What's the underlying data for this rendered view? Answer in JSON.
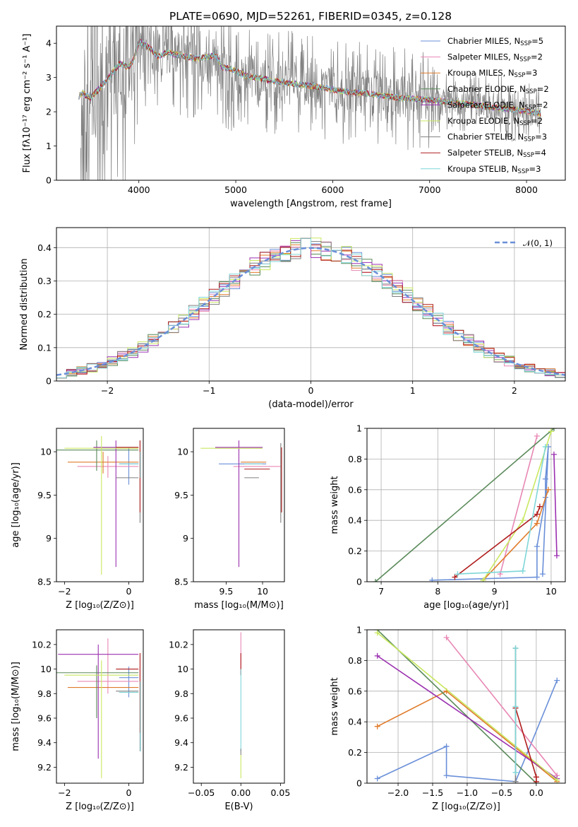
{
  "figure": {
    "title": "PLATE=0690, MJD=52261, FIBERID=0345, z=0.128"
  },
  "colors": {
    "Chabrier MILES": "#6a8fd8",
    "Salpeter MILES": "#e887b4",
    "Kroupa MILES": "#e07b2a",
    "Chabrier ELODIE": "#5a8a5a",
    "Salpeter ELODIE": "#9b30b0",
    "Kroupa ELODIE": "#c9e860",
    "Chabrier STELIB": "#7f7f7f",
    "Salpeter STELIB": "#b01c1c",
    "Kroupa STELIB": "#7fd6d8",
    "gaussian": "#6a8fd8",
    "data_noise": "#808080"
  },
  "chart_data": [
    {
      "id": "spectrum",
      "type": "line",
      "xlabel": "wavelength [Angstrom, rest frame]",
      "ylabel": "Flux [fλ10⁻¹⁷ erg cm⁻² s⁻¹ A⁻¹]",
      "xlim": [
        3150,
        8400
      ],
      "ylim": [
        0,
        4.5
      ],
      "xticks": [
        4000,
        5000,
        6000,
        7000,
        8000
      ],
      "yticks": [
        0,
        1,
        2,
        3,
        4
      ],
      "legend_position": "top-right",
      "legend": [
        {
          "label": "Chabrier MILES, N",
          "sub": "SSP",
          "n": "=5",
          "color_key": "Chabrier MILES"
        },
        {
          "label": "Salpeter MILES, N",
          "sub": "SSP",
          "n": "=2",
          "color_key": "Salpeter MILES"
        },
        {
          "label": "Kroupa MILES, N",
          "sub": "SSP",
          "n": "=3",
          "color_key": "Kroupa MILES"
        },
        {
          "label": "Chabrier ELODIE, N",
          "sub": "SSP",
          "n": "=2",
          "color_key": "Chabrier ELODIE"
        },
        {
          "label": "Salpeter ELODIE, N",
          "sub": "SSP",
          "n": "=2",
          "color_key": "Salpeter ELODIE"
        },
        {
          "label": "Kroupa ELODIE, N",
          "sub": "SSP",
          "n": "=2",
          "color_key": "Kroupa ELODIE"
        },
        {
          "label": "Chabrier STELIB, N",
          "sub": "SSP",
          "n": "=3",
          "color_key": "Chabrier STELIB"
        },
        {
          "label": "Salpeter STELIB, N",
          "sub": "SSP",
          "n": "=4",
          "color_key": "Salpeter STELIB"
        },
        {
          "label": "Kroupa STELIB, N",
          "sub": "SSP",
          "n": "=3",
          "color_key": "Kroupa STELIB"
        }
      ],
      "model_continuum": {
        "x": [
          3380,
          3420,
          3500,
          3600,
          3700,
          3800,
          3900,
          3950,
          4000,
          4100,
          4200,
          4300,
          4400,
          4600,
          4800,
          4860,
          4950,
          5100,
          5300,
          5500,
          5800,
          6100,
          6400,
          6700,
          7000,
          7300,
          7600,
          7900,
          8150
        ],
        "y": [
          2.45,
          2.55,
          2.4,
          2.7,
          3.05,
          3.4,
          3.3,
          3.55,
          4.05,
          3.9,
          3.6,
          3.75,
          3.65,
          3.55,
          3.65,
          3.3,
          3.25,
          3.05,
          2.95,
          2.85,
          2.75,
          2.6,
          2.52,
          2.4,
          2.35,
          2.25,
          2.15,
          2.05,
          1.95
        ]
      },
      "data_noise": {
        "x_range": [
          3400,
          8150
        ],
        "amplitude_note": "noisy observed spectrum spanning roughly 0 to above 4.5"
      }
    },
    {
      "id": "residuals",
      "type": "line",
      "xlabel": "(data-model)/error",
      "ylabel": "Normed distribution",
      "xlim": [
        -2.5,
        2.5
      ],
      "ylim": [
        0,
        0.46
      ],
      "xticks": [
        -2,
        -1,
        0,
        1,
        2
      ],
      "yticks": [
        0.0,
        0.1,
        0.2,
        0.3,
        0.4
      ],
      "grid": true,
      "legend_position": "top-right",
      "legend_label": "𝒩(0, 1)",
      "gaussian": {
        "mean": 0,
        "sigma": 1
      },
      "bins": {
        "start": -2.5,
        "width": 0.1,
        "count": 50
      }
    },
    {
      "id": "age-vs-Z",
      "type": "scatter",
      "xlabel": "Z [log₁₀(Z/Z⊙)]",
      "ylabel": "age  [log₁₀(age/yr)]",
      "xlim": [
        -2.25,
        0.45
      ],
      "ylim": [
        8.5,
        10.27
      ],
      "xticks": [
        -2,
        0
      ],
      "yticks": [
        8.5,
        9.0,
        9.5,
        10.0
      ],
      "points": [
        {
          "key": "Chabrier MILES",
          "x": [
            -0.3,
            0.3
          ],
          "y": 9.86,
          "yerr": [
            9.62,
            10.05
          ]
        },
        {
          "key": "Salpeter MILES",
          "x": [
            -1.6,
            0.3
          ],
          "y": 9.83,
          "yerr": [
            9.7,
            9.95
          ]
        },
        {
          "key": "Kroupa MILES",
          "x": [
            -1.9,
            0.3
          ],
          "y": 9.88,
          "yerr": [
            9.75,
            10.0
          ]
        },
        {
          "key": "Chabrier ELODIE",
          "x": [
            -2.3,
            0.3
          ],
          "y": 10.02,
          "yerr": [
            9.78,
            10.13
          ]
        },
        {
          "key": "Salpeter ELODIE",
          "x": [
            -1.1,
            0.3
          ],
          "y": 10.05,
          "yerr": [
            8.67,
            10.13
          ]
        },
        {
          "key": "Kroupa ELODIE",
          "x": [
            -2.0,
            0.3
          ],
          "y": 10.04,
          "yerr": [
            8.58,
            10.18
          ]
        },
        {
          "key": "Chabrier STELIB",
          "x": [
            -0.4,
            0.3
          ],
          "y": 9.7,
          "yerr": [
            9.18,
            10.13
          ]
        },
        {
          "key": "Salpeter STELIB",
          "x": [
            -0.4,
            0.3
          ],
          "y": 10.05,
          "yerr": [
            9.3,
            10.13
          ]
        },
        {
          "key": "Kroupa STELIB",
          "x": [
            -0.3,
            0.3
          ],
          "y": 9.86,
          "yerr": [
            9.7,
            10.0
          ]
        }
      ]
    },
    {
      "id": "age-vs-mass",
      "type": "scatter",
      "xlabel": "mass [log₁₀(M/M⊙)]",
      "ylabel": "",
      "xlim": [
        9.05,
        10.3
      ],
      "ylim": [
        8.5,
        10.27
      ],
      "xticks": [
        9.5,
        10.0
      ],
      "yticks": [
        8.5,
        9.0,
        9.5,
        10.0
      ],
      "points": [
        {
          "key": "Chabrier MILES",
          "x": [
            9.4,
            10.05
          ],
          "y": 9.86
        },
        {
          "key": "Salpeter MILES",
          "x": [
            9.6,
            10.25
          ],
          "y": 9.83
        },
        {
          "key": "Kroupa MILES",
          "x": [
            9.7,
            10.05
          ],
          "y": 9.88
        },
        {
          "key": "Salpeter ELODIE",
          "x": [
            9.35,
            10.0
          ],
          "y": 10.05,
          "yerr": [
            8.67,
            10.13
          ]
        },
        {
          "key": "Kroupa ELODIE",
          "x": [
            9.15,
            10.0
          ],
          "y": 10.04
        },
        {
          "key": "Chabrier STELIB",
          "x": [
            9.75,
            9.95
          ],
          "y": 9.7,
          "yerr": [
            9.18,
            10.1
          ]
        },
        {
          "key": "Salpeter STELIB",
          "x": [
            9.75,
            10.1
          ],
          "y": 9.8,
          "yerr": [
            9.3,
            10.05
          ]
        },
        {
          "key": "Kroupa STELIB",
          "x": [
            9.75,
            10.0
          ],
          "y": 9.86
        }
      ]
    },
    {
      "id": "massweight-vs-age",
      "type": "line",
      "xlabel": "age  [log₁₀(age/yr)]",
      "ylabel": "mass weight",
      "xlim": [
        6.75,
        10.25
      ],
      "ylim": [
        0,
        1.0
      ],
      "xticks": [
        7,
        8,
        9,
        10
      ],
      "yticks": [
        0.0,
        0.2,
        0.4,
        0.6,
        0.8,
        1.0
      ],
      "grid": true,
      "series": [
        {
          "key": "Chabrier MILES",
          "x": [
            7.9,
            9.75,
            9.75,
            9.9,
            9.9,
            9.95,
            9.85
          ],
          "y": [
            0.01,
            0.03,
            0.23,
            0.55,
            0.67,
            0.88,
            0.05
          ]
        },
        {
          "key": "Salpeter MILES",
          "x": [
            9.1,
            9.75
          ],
          "y": [
            0.05,
            0.95
          ]
        },
        {
          "key": "Kroupa MILES",
          "x": [
            8.8,
            9.75,
            9.95
          ],
          "y": [
            0.01,
            0.38,
            0.6
          ]
        },
        {
          "key": "Chabrier ELODIE",
          "x": [
            6.9,
            10.05
          ],
          "y": [
            0.0,
            1.0
          ]
        },
        {
          "key": "Salpeter ELODIE",
          "x": [
            10.05,
            10.1
          ],
          "y": [
            0.83,
            0.17
          ]
        },
        {
          "key": "Kroupa ELODIE",
          "x": [
            8.8,
            9.5,
            10.0
          ],
          "y": [
            0.01,
            0.4,
            0.98
          ]
        },
        {
          "key": "Salpeter STELIB",
          "x": [
            8.3,
            9.75,
            9.8
          ],
          "y": [
            0.03,
            0.44,
            0.49
          ]
        },
        {
          "key": "Kroupa STELIB",
          "x": [
            8.35,
            9.5,
            9.9
          ],
          "y": [
            0.05,
            0.07,
            0.88
          ]
        }
      ]
    },
    {
      "id": "mass-vs-Z",
      "type": "scatter",
      "xlabel": "Z [log₁₀(Z/Z⊙)]",
      "ylabel": "mass [log₁₀(M/M⊙)]",
      "xlim": [
        -2.25,
        0.45
      ],
      "ylim": [
        9.07,
        10.32
      ],
      "xticks": [
        -2,
        0
      ],
      "yticks": [
        9.2,
        9.4,
        9.6,
        9.8,
        10.0,
        10.2
      ],
      "points": [
        {
          "key": "Chabrier MILES",
          "x": [
            -0.3,
            0.3
          ],
          "y": 9.93,
          "yerr": [
            9.77,
            10.02
          ]
        },
        {
          "key": "Salpeter MILES",
          "x": [
            -1.6,
            0.3
          ],
          "y": 9.9,
          "yerr": [
            9.8,
            10.25
          ]
        },
        {
          "key": "Kroupa MILES",
          "x": [
            -1.9,
            0.3
          ],
          "y": 9.85
        },
        {
          "key": "Chabrier ELODIE",
          "x": [
            -2.3,
            0.3
          ],
          "y": 9.97,
          "yerr": [
            9.6,
            10.03
          ]
        },
        {
          "key": "Salpeter ELODIE",
          "x": [
            -2.2,
            0.3
          ],
          "y": 10.12,
          "yerr": [
            9.27,
            10.2
          ]
        },
        {
          "key": "Kroupa ELODIE",
          "x": [
            -2.0,
            0.3
          ],
          "y": 9.95,
          "yerr": [
            9.11,
            10.07
          ]
        },
        {
          "key": "Chabrier STELIB",
          "x": [
            -0.4,
            0.3
          ],
          "y": 9.82,
          "yerr": [
            9.33,
            10.02
          ]
        },
        {
          "key": "Salpeter STELIB",
          "x": [
            -0.4,
            0.3
          ],
          "y": 10.0,
          "yerr": [
            9.48,
            10.13
          ]
        },
        {
          "key": "Kroupa STELIB",
          "x": [
            -0.3,
            0.3
          ],
          "y": 9.81,
          "yerr": [
            9.33,
            9.9
          ]
        }
      ]
    },
    {
      "id": "mass-vs-EBV",
      "type": "scatter",
      "xlabel": "E(B-V)",
      "ylabel": "",
      "xlim": [
        -0.06,
        0.055
      ],
      "ylim": [
        9.07,
        10.32
      ],
      "xticks": [
        -0.05,
        0.0,
        0.05
      ],
      "xticklabels": [
        "−0.05",
        "0.00",
        "0.05"
      ],
      "yticks": [
        9.2,
        9.4,
        9.6,
        9.8,
        10.0,
        10.2
      ],
      "points": [
        {
          "key": "Salpeter MILES",
          "x": 0.0,
          "yerr": [
            9.95,
            10.3
          ]
        },
        {
          "key": "Kroupa ELODIE",
          "x": 0.0,
          "yerr": [
            9.11,
            9.3
          ]
        },
        {
          "key": "Salpeter STELIB",
          "x": 0.0,
          "yerr": [
            9.95,
            10.13
          ]
        },
        {
          "key": "Kroupa STELIB",
          "x": 0.0,
          "yerr": [
            9.33,
            10.0
          ]
        },
        {
          "key": "Chabrier STELIB",
          "x": 0.0,
          "yerr": [
            9.3,
            9.35
          ]
        }
      ]
    },
    {
      "id": "massweight-vs-Z",
      "type": "line",
      "xlabel": "Z [log₁₀(Z/Z⊙)]",
      "ylabel": "mass weight",
      "xlim": [
        -2.45,
        0.42
      ],
      "ylim": [
        0,
        1.0
      ],
      "xticks": [
        -2.0,
        -1.5,
        -1.0,
        -0.5,
        0.0
      ],
      "xticklabels": [
        "−2.0",
        "−1.5",
        "−1.0",
        "−0.5",
        "0.0"
      ],
      "yticks": [
        0.0,
        0.2,
        0.4,
        0.6,
        0.8,
        1.0
      ],
      "grid": true,
      "series": [
        {
          "key": "Chabrier MILES",
          "x": [
            -2.3,
            -1.3,
            -1.3,
            -0.3,
            0.3
          ],
          "y": [
            0.03,
            0.24,
            0.05,
            0.01,
            0.67
          ]
        },
        {
          "key": "Salpeter MILES",
          "x": [
            -1.3,
            0.3
          ],
          "y": [
            0.95,
            0.05
          ]
        },
        {
          "key": "Kroupa MILES",
          "x": [
            -2.3,
            -1.3,
            0.3
          ],
          "y": [
            0.37,
            0.6,
            0.01
          ]
        },
        {
          "key": "Chabrier ELODIE",
          "x": [
            -2.3,
            0.0
          ],
          "y": [
            1.0,
            0.0
          ]
        },
        {
          "key": "Salpeter ELODIE",
          "x": [
            -2.3,
            0.3
          ],
          "y": [
            0.83,
            0.03
          ]
        },
        {
          "key": "Kroupa ELODIE",
          "x": [
            -2.3,
            0.3
          ],
          "y": [
            0.98,
            0.02
          ]
        },
        {
          "key": "Chabrier STELIB",
          "x": [
            -0.3,
            -0.3
          ],
          "y": [
            0.01,
            0.88
          ]
        },
        {
          "key": "Salpeter STELIB",
          "x": [
            -0.3,
            0.0,
            0.0
          ],
          "y": [
            0.49,
            0.04,
            0.01
          ]
        },
        {
          "key": "Kroupa STELIB",
          "x": [
            -0.3,
            -0.3,
            -0.3
          ],
          "y": [
            0.07,
            0.88,
            0.5
          ]
        }
      ]
    }
  ]
}
